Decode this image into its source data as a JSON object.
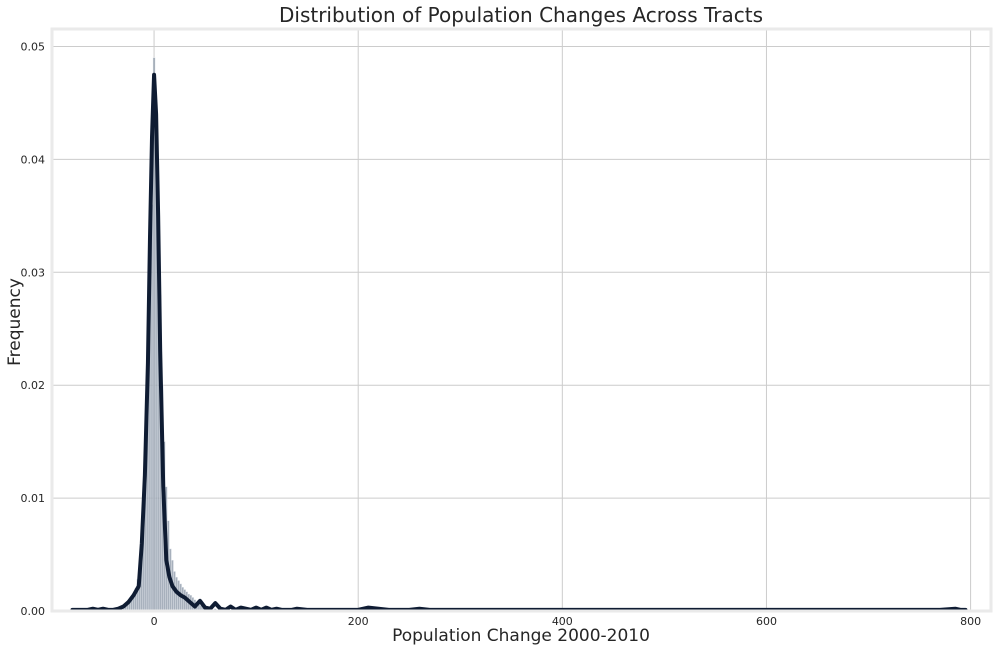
{
  "chart_data": {
    "type": "histogram",
    "title": "Distribution of Population Changes Across Tracts",
    "xlabel": "Population Change 2000-2010",
    "ylabel": "Frequency",
    "xlim": [
      -100,
      820
    ],
    "ylim": [
      0,
      0.05
    ],
    "x_ticks": [
      0,
      200,
      400,
      600,
      800
    ],
    "x_tick_labels": [
      "0",
      "200",
      "400",
      "600",
      "800"
    ],
    "y_ticks": [
      0.0,
      0.01,
      0.02,
      0.03,
      0.04,
      0.05
    ],
    "y_tick_labels": [
      "0.00",
      "0.01",
      "0.02",
      "0.03",
      "0.04",
      "0.05"
    ],
    "grid": true,
    "colors": {
      "bars_fill": "#8a95a6",
      "bars_edge": "#e4e8ee",
      "kde_line": "#0f1c33",
      "grid": "#cccccc",
      "frame": "#eaeaea",
      "text": "#262626"
    },
    "histogram": {
      "bin_width": 2,
      "bins": [
        {
          "x": -30,
          "y": 0.0003
        },
        {
          "x": -28,
          "y": 0.0005
        },
        {
          "x": -26,
          "y": 0.0007
        },
        {
          "x": -24,
          "y": 0.0009
        },
        {
          "x": -22,
          "y": 0.0011
        },
        {
          "x": -20,
          "y": 0.0015
        },
        {
          "x": -18,
          "y": 0.002
        },
        {
          "x": -16,
          "y": 0.0028
        },
        {
          "x": -14,
          "y": 0.0035
        },
        {
          "x": -12,
          "y": 0.006
        },
        {
          "x": -10,
          "y": 0.009
        },
        {
          "x": -8,
          "y": 0.013
        },
        {
          "x": -6,
          "y": 0.02
        },
        {
          "x": -4,
          "y": 0.029
        },
        {
          "x": -2,
          "y": 0.036
        },
        {
          "x": 0,
          "y": 0.049
        },
        {
          "x": 2,
          "y": 0.045
        },
        {
          "x": 4,
          "y": 0.036
        },
        {
          "x": 6,
          "y": 0.028
        },
        {
          "x": 8,
          "y": 0.02
        },
        {
          "x": 10,
          "y": 0.015
        },
        {
          "x": 12,
          "y": 0.011
        },
        {
          "x": 14,
          "y": 0.008
        },
        {
          "x": 16,
          "y": 0.0055
        },
        {
          "x": 18,
          "y": 0.0045
        },
        {
          "x": 20,
          "y": 0.0035
        },
        {
          "x": 22,
          "y": 0.003
        },
        {
          "x": 24,
          "y": 0.0027
        },
        {
          "x": 26,
          "y": 0.0024
        },
        {
          "x": 28,
          "y": 0.0021
        },
        {
          "x": 30,
          "y": 0.0019
        },
        {
          "x": 32,
          "y": 0.0017
        },
        {
          "x": 34,
          "y": 0.0015
        },
        {
          "x": 36,
          "y": 0.0014
        },
        {
          "x": 38,
          "y": 0.0012
        },
        {
          "x": 40,
          "y": 0.001
        },
        {
          "x": 42,
          "y": 0.0008
        },
        {
          "x": 44,
          "y": 0.0006
        },
        {
          "x": 46,
          "y": 0.0005
        },
        {
          "x": 48,
          "y": 0.0004
        },
        {
          "x": 52,
          "y": 0.0003
        },
        {
          "x": 56,
          "y": 0.0003
        },
        {
          "x": 60,
          "y": 0.0002
        },
        {
          "x": 70,
          "y": 0.0002
        },
        {
          "x": 80,
          "y": 0.0001
        }
      ]
    },
    "kde": {
      "x": [
        -80,
        -75,
        -70,
        -65,
        -60,
        -55,
        -50,
        -45,
        -40,
        -35,
        -30,
        -25,
        -20,
        -15,
        -12,
        -9,
        -6,
        -4,
        -2,
        0,
        2,
        4,
        6,
        9,
        12,
        15,
        18,
        22,
        26,
        30,
        35,
        40,
        45,
        50,
        55,
        60,
        65,
        70,
        75,
        80,
        85,
        90,
        95,
        100,
        105,
        110,
        115,
        120,
        125,
        130,
        135,
        140,
        150,
        160,
        170,
        180,
        190,
        200,
        210,
        220,
        230,
        240,
        250,
        260,
        270,
        280,
        300,
        350,
        400,
        450,
        500,
        550,
        590,
        600,
        610,
        650,
        700,
        750,
        770,
        785,
        790,
        795
      ],
      "y": [
        0.0001,
        0.0001,
        0.0001,
        0.0001,
        0.0002,
        0.0001,
        0.0002,
        0.0001,
        0.0001,
        0.0002,
        0.0004,
        0.0008,
        0.0014,
        0.0022,
        0.006,
        0.012,
        0.022,
        0.033,
        0.042,
        0.0475,
        0.044,
        0.035,
        0.023,
        0.011,
        0.0045,
        0.003,
        0.0022,
        0.0017,
        0.0014,
        0.0012,
        0.0008,
        0.0004,
        0.0009,
        0.0003,
        0.0002,
        0.0007,
        0.0002,
        0.0001,
        0.0004,
        0.0001,
        0.0003,
        0.0002,
        0.0001,
        0.0003,
        0.0001,
        0.0003,
        0.0001,
        0.0002,
        0.0001,
        0.0001,
        0.0001,
        0.0002,
        0.0001,
        0.0001,
        0.0001,
        0.0001,
        0.0001,
        0.0001,
        0.0003,
        0.0002,
        0.0001,
        0.0001,
        0.0001,
        0.0002,
        0.0001,
        0.0001,
        0.0001,
        0.0001,
        0.0001,
        0.0001,
        0.0001,
        0.0001,
        0.0001,
        0.0001,
        0.0001,
        0.0001,
        0.0001,
        0.0001,
        0.0001,
        0.0002,
        0.0001,
        0.0001
      ]
    }
  }
}
